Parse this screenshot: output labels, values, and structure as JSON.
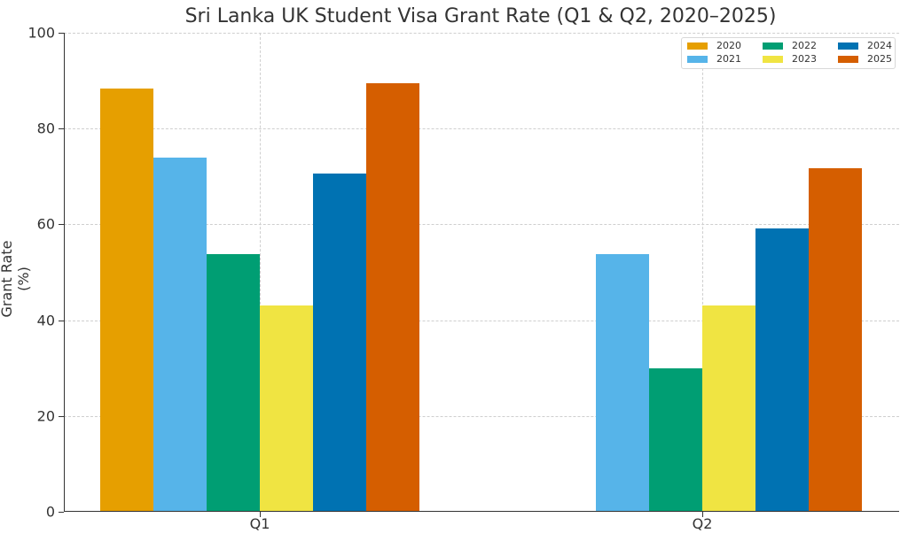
{
  "chart_data": {
    "type": "bar",
    "title": "Sri Lanka UK Student Visa Grant Rate (Q1 & Q2, 2020–2025)",
    "xlabel": "",
    "ylabel": "Grant Rate (%)",
    "ylim": [
      0,
      100
    ],
    "yticks": [
      0,
      20,
      40,
      60,
      80,
      100
    ],
    "categories": [
      "Q1",
      "Q2"
    ],
    "grid": true,
    "legend_position": "upper right",
    "series": [
      {
        "name": "2020",
        "color": "#E69F00",
        "values": [
          88.4,
          0
        ]
      },
      {
        "name": "2021",
        "color": "#56B4E9",
        "values": [
          73.9,
          53.8
        ]
      },
      {
        "name": "2022",
        "color": "#009E73",
        "values": [
          53.8,
          30.0
        ]
      },
      {
        "name": "2023",
        "color": "#F0E442",
        "values": [
          43.1,
          43.1
        ]
      },
      {
        "name": "2024",
        "color": "#0072B2",
        "values": [
          70.6,
          59.2
        ]
      },
      {
        "name": "2025",
        "color": "#D55E00",
        "values": [
          89.5,
          71.7
        ]
      }
    ]
  }
}
